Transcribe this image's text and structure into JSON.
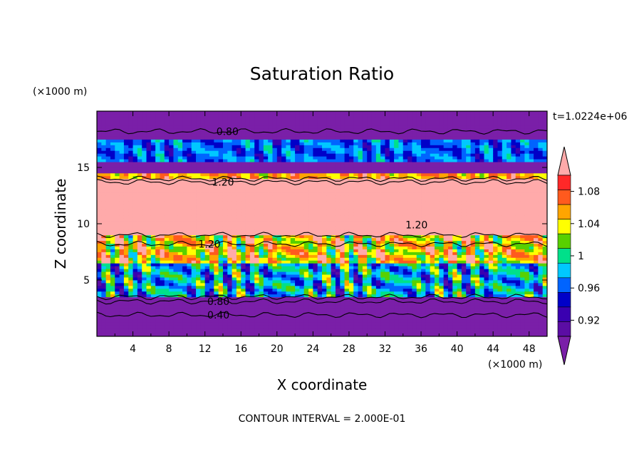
{
  "chart_data": {
    "type": "heatmap",
    "title": "Saturation Ratio",
    "xlabel": "X coordinate",
    "ylabel": "Z coordinate",
    "x_unit": "(×1000 m)",
    "y_unit": "(×1000 m)",
    "time_label": "t=1.0224e+06",
    "footer": "CONTOUR INTERVAL = 2.000E-01",
    "xlim": [
      0,
      50
    ],
    "ylim": [
      0,
      20
    ],
    "x_ticks": [
      4,
      8,
      12,
      16,
      20,
      24,
      28,
      32,
      36,
      40,
      44,
      48
    ],
    "y_ticks": [
      5,
      10,
      15
    ],
    "grid": false,
    "colorbar": {
      "levels": [
        0.9,
        0.92,
        0.94,
        0.96,
        0.98,
        1.0,
        1.02,
        1.04,
        1.06,
        1.08,
        1.1
      ],
      "colors": [
        "#5b0da4",
        "#3a00b0",
        "#0000c8",
        "#0064ff",
        "#00c8ff",
        "#00e08a",
        "#58d000",
        "#ffff00",
        "#ffa500",
        "#ff5a1e",
        "#ff2828"
      ],
      "over_color": "#ffaaaa",
      "under_color": "#7a1fa8",
      "tick_labels": [
        "1.08",
        "1.04",
        "1",
        "0.96",
        "0.92"
      ],
      "tick_values": [
        1.08,
        1.04,
        1.0,
        0.96,
        0.92
      ]
    },
    "bands": [
      {
        "z": [
          18.5,
          20.0
        ],
        "value": 0.8
      },
      {
        "z": [
          17.5,
          18.5
        ],
        "value": 0.8
      },
      {
        "z": [
          15.5,
          17.5
        ],
        "value": 0.97
      },
      {
        "z": [
          14.6,
          15.5
        ],
        "value": 0.8
      },
      {
        "z": [
          14.0,
          14.6
        ],
        "value": 1.07
      },
      {
        "z": [
          9.0,
          14.0
        ],
        "value": 1.2
      },
      {
        "z": [
          6.5,
          9.0
        ],
        "value": 1.06
      },
      {
        "z": [
          3.5,
          6.5
        ],
        "value": 0.99
      },
      {
        "z": [
          0.0,
          3.5
        ],
        "value": 0.6
      }
    ],
    "contour_labels": [
      {
        "text": "0.80",
        "x": 14.5,
        "z": 18.2
      },
      {
        "text": "1.20",
        "x": 14.0,
        "z": 13.7
      },
      {
        "text": "1.20",
        "x": 12.5,
        "z": 8.2
      },
      {
        "text": "1.20",
        "x": 35.5,
        "z": 9.9
      },
      {
        "text": "0.80",
        "x": 13.5,
        "z": 3.1
      },
      {
        "text": "0.40",
        "x": 13.5,
        "z": 1.9
      }
    ]
  }
}
